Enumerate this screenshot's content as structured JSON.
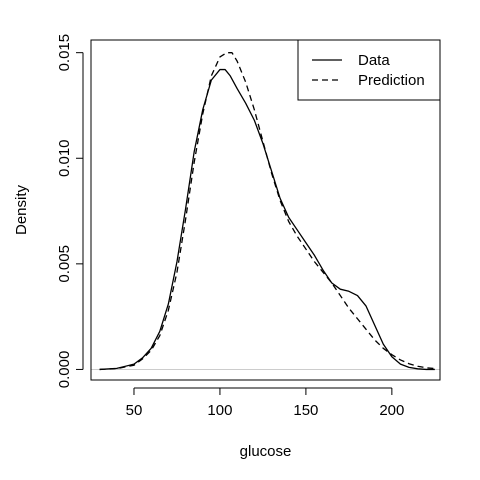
{
  "chart_data": {
    "type": "line",
    "title": "",
    "xlabel": "glucose",
    "ylabel": "Density",
    "xlim": [
      25,
      228
    ],
    "ylim": [
      -0.0005,
      0.0156
    ],
    "x_ticks": [
      50,
      100,
      150,
      200
    ],
    "x_tick_labels": [
      "50",
      "100",
      "150",
      "200"
    ],
    "y_ticks": [
      0.0,
      0.005,
      0.01,
      0.015
    ],
    "y_tick_labels": [
      "0.000",
      "0.005",
      "0.010",
      "0.015"
    ],
    "grid": false,
    "zero_line": true,
    "legend_position": "top-right",
    "series": [
      {
        "name": "Data",
        "line_style": "solid",
        "color": "#000000",
        "x": [
          30,
          40,
          50,
          55,
          60,
          65,
          70,
          75,
          80,
          85,
          90,
          95,
          100,
          103,
          106,
          110,
          115,
          120,
          125,
          130,
          135,
          140,
          145,
          150,
          155,
          160,
          165,
          170,
          175,
          180,
          185,
          190,
          195,
          200,
          205,
          210,
          215,
          220,
          225
        ],
        "y": [
          0.0,
          5e-05,
          0.00025,
          0.00055,
          0.001,
          0.0018,
          0.0031,
          0.0051,
          0.0076,
          0.0103,
          0.0123,
          0.0137,
          0.0142,
          0.0142,
          0.0139,
          0.0133,
          0.0126,
          0.0118,
          0.0107,
          0.0094,
          0.0081,
          0.0072,
          0.0066,
          0.006,
          0.0054,
          0.0047,
          0.0041,
          0.0038,
          0.0037,
          0.0035,
          0.003,
          0.0021,
          0.0012,
          0.0006,
          0.00025,
          0.0001,
          3e-05,
          0.0,
          0.0
        ]
      },
      {
        "name": "Prediction",
        "line_style": "dashed",
        "color": "#000000",
        "x": [
          30,
          40,
          50,
          55,
          60,
          65,
          70,
          75,
          80,
          85,
          90,
          95,
          100,
          104,
          107,
          110,
          115,
          120,
          125,
          130,
          135,
          140,
          145,
          150,
          155,
          160,
          165,
          170,
          175,
          180,
          185,
          190,
          195,
          200,
          205,
          210,
          215,
          220,
          225
        ],
        "y": [
          0.0,
          4e-05,
          0.0002,
          0.0005,
          0.0009,
          0.0016,
          0.0028,
          0.0046,
          0.0071,
          0.0098,
          0.0121,
          0.0139,
          0.0148,
          0.015,
          0.015,
          0.0146,
          0.0136,
          0.0123,
          0.0108,
          0.0093,
          0.008,
          0.007,
          0.0063,
          0.0057,
          0.0051,
          0.0046,
          0.0041,
          0.0035,
          0.0029,
          0.0024,
          0.0019,
          0.0014,
          0.001,
          0.0007,
          0.00045,
          0.00027,
          0.00015,
          8e-05,
          4e-05
        ]
      }
    ]
  }
}
